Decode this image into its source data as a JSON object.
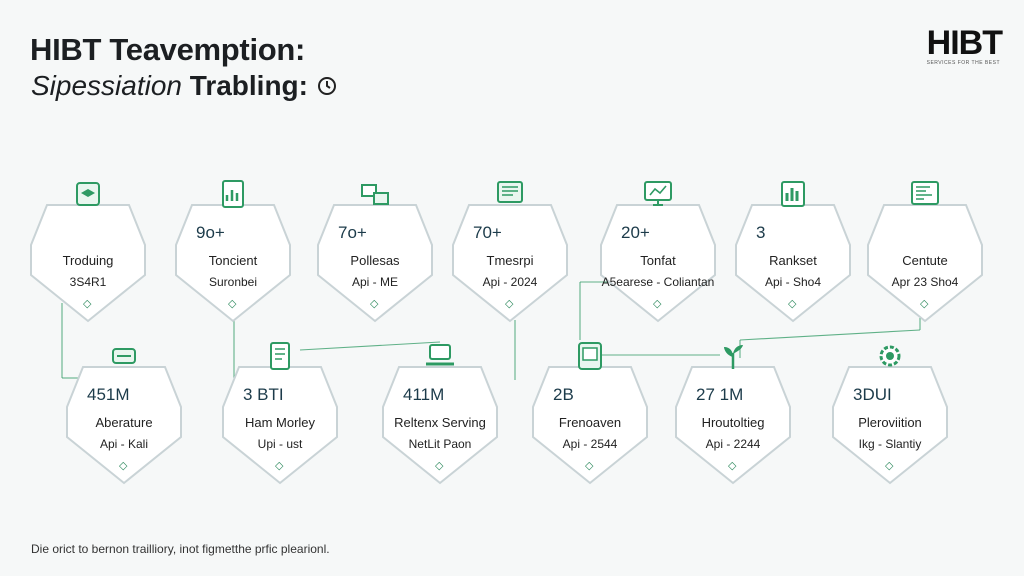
{
  "header": {
    "title_line1": "HIBT Teavemption:",
    "title_line2_italic": "Sipessiation",
    "title_line2_bold": "Trabling:",
    "title_icon": "clock-icon",
    "brand": "HIBT",
    "brand_sub": "SERVICES FOR THE BEST"
  },
  "nodes_top": [
    {
      "value": "",
      "name": "Troduing",
      "sub": "3S4R1",
      "icon": "cube-icon"
    },
    {
      "value": "9o+",
      "name": "Toncient",
      "sub": "Suronbei",
      "icon": "chart-doc-icon"
    },
    {
      "value": "7o+",
      "name": "Pollesas",
      "sub": "Api - ME",
      "icon": "boxes-icon"
    },
    {
      "value": "70+",
      "name": "Tmesrpi",
      "sub": "Api - 2024",
      "icon": "monitor-icon"
    },
    {
      "value": "20+",
      "name": "Tonfat",
      "sub": "A5earese - Coliantan",
      "icon": "screen-icon"
    },
    {
      "value": "3",
      "name": "Rankset",
      "sub": "Api - Sho4",
      "icon": "bar-chart-icon"
    },
    {
      "value": "",
      "name": "Centute",
      "sub": "Apr 23 Sho4",
      "icon": "dashboard-icon"
    }
  ],
  "nodes_bottom": [
    {
      "value": "451M",
      "name": "Aberature",
      "sub": "Api - Kali",
      "icon": "tag-icon"
    },
    {
      "value": "3 BTI",
      "name": "Ham Morley",
      "sub": "Upi - ust",
      "icon": "document-icon"
    },
    {
      "value": "411M",
      "name": "Reltenx Serving",
      "sub": "NetLit Paon",
      "icon": "laptop-icon"
    },
    {
      "value": "2B",
      "name": "Frenoaven",
      "sub": "Api - 2544",
      "icon": "server-icon"
    },
    {
      "value": "27 1M",
      "name": "Hroutoltieg",
      "sub": "Api - 2244",
      "icon": "plant-icon"
    },
    {
      "value": "3DUI",
      "name": "Pleroviition",
      "sub": "Ikg - Slantiy",
      "icon": "gear-icon"
    }
  ],
  "footer": "Die orict to bernon trailliory, inot figmetthe prfic plearionl.",
  "colors": {
    "accent": "#2e9a63",
    "hex_fill": "#ffffff",
    "hex_stroke": "#c9d3d6"
  }
}
